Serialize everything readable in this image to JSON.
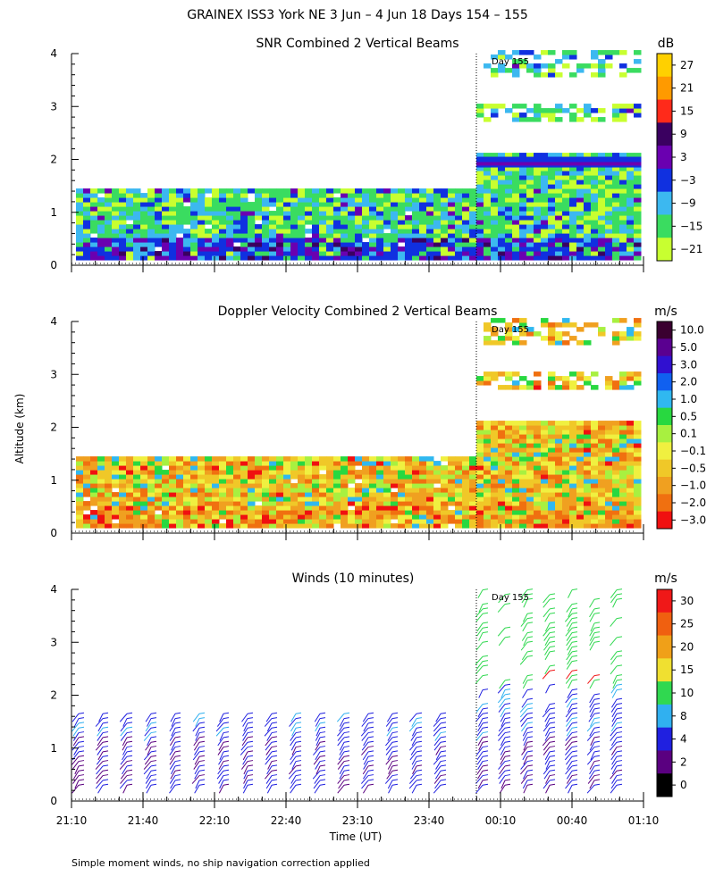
{
  "figure": {
    "title": "GRAINEX ISS3 York NE    3 Jun –  4 Jun 18 Days 154 – 155",
    "ylabel": "Altitude (km)",
    "xlabel": "Time (UT)",
    "footnote": "Simple moment winds, no ship navigation correction applied",
    "day_marker_label": "Day 155"
  },
  "chart_data": [
    {
      "type": "heatmap",
      "title": "SNR Combined 2 Vertical Beams",
      "colorbar_unit": "dB",
      "colorbar_ticks": [
        "27",
        "21",
        "15",
        "9",
        "3",
        "−3",
        "−9",
        "−15",
        "−21"
      ],
      "colorbar_colors": [
        "#ffd000",
        "#ff9a00",
        "#ff2a1a",
        "#3a0060",
        "#6a00b0",
        "#1030e0",
        "#3cb8f0",
        "#3adc60",
        "#c8ff30"
      ],
      "y_ticks": [
        "0",
        "1",
        "2",
        "3",
        "4"
      ],
      "ylim": [
        0,
        4
      ],
      "x_ticks": [
        "21:10",
        "21:40",
        "22:10",
        "22:40",
        "23:10",
        "23:40",
        "00:10",
        "00:40",
        "01:10"
      ],
      "day_boundary_time": "00:00"
    },
    {
      "type": "heatmap",
      "title": "Doppler Velocity Combined 2 Vertical Beams",
      "colorbar_unit": "m/s",
      "colorbar_ticks": [
        "10.0",
        "5.0",
        "3.0",
        "2.0",
        "1.0",
        "0.5",
        "0.1",
        "−0.1",
        "−0.5",
        "−1.0",
        "−2.0",
        "−3.0"
      ],
      "colorbar_colors": [
        "#3a0030",
        "#5a0090",
        "#3010d0",
        "#1060f0",
        "#30b8f0",
        "#28d840",
        "#a8f040",
        "#f0f040",
        "#f0c828",
        "#f0a020",
        "#f07010",
        "#f01010"
      ],
      "y_ticks": [
        "0",
        "1",
        "2",
        "3",
        "4"
      ],
      "ylim": [
        0,
        4
      ],
      "x_ticks": [
        "21:10",
        "21:40",
        "22:10",
        "22:40",
        "23:10",
        "23:40",
        "00:10",
        "00:40",
        "01:10"
      ],
      "day_boundary_time": "00:00"
    },
    {
      "type": "scatter",
      "title": "Winds (10 minutes)",
      "colorbar_unit": "m/s",
      "colorbar_ticks": [
        "30",
        "25",
        "20",
        "15",
        "10",
        "8",
        "4",
        "2",
        "0"
      ],
      "colorbar_colors": [
        "#f01818",
        "#f06010",
        "#f0a018",
        "#f0e030",
        "#30d850",
        "#30b0f0",
        "#2020e0",
        "#5a0080",
        "#000000"
      ],
      "y_ticks": [
        "0",
        "1",
        "2",
        "3",
        "4"
      ],
      "ylim": [
        0,
        4
      ],
      "x_ticks": [
        "21:10",
        "21:40",
        "22:10",
        "22:40",
        "23:10",
        "23:40",
        "00:10",
        "00:40",
        "01:10"
      ],
      "day_boundary_time": "00:00"
    }
  ]
}
